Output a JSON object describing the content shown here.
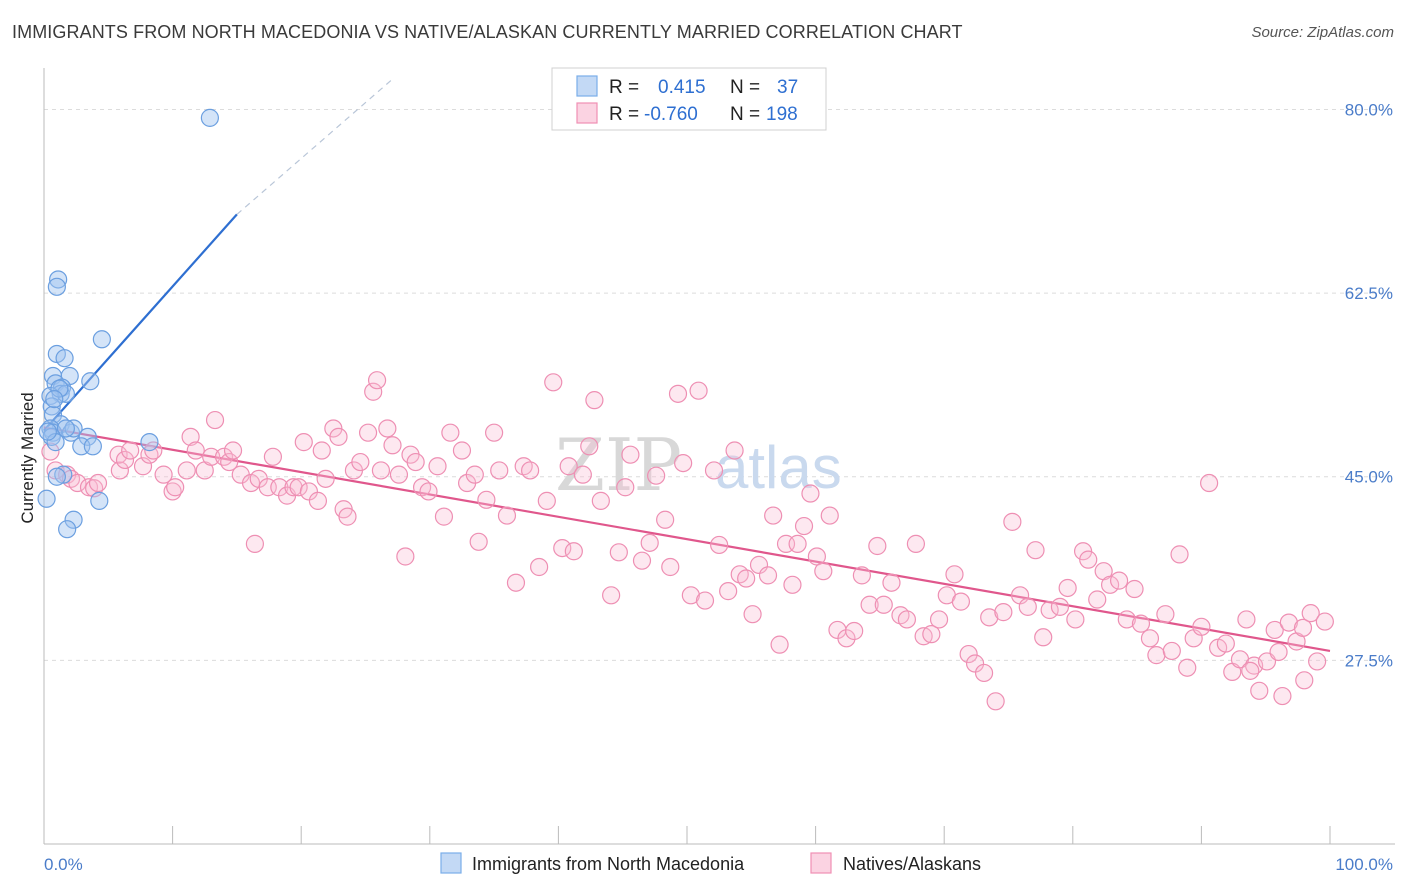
{
  "title": "IMMIGRANTS FROM NORTH MACEDONIA VS NATIVE/ALASKAN CURRENTLY MARRIED CORRELATION CHART",
  "source": "Source: ZipAtlas.com",
  "watermark": {
    "zip": "ZIP",
    "atlas": "atlas"
  },
  "colors": {
    "blue": "#7aaee8",
    "blue_line": "#2e6fd1",
    "pink": "#f08fb3",
    "pink_line": "#e0578c",
    "axis_label": "#4a7cc9"
  },
  "legend": {
    "rows": [
      {
        "r_label": "R =",
        "r_value": "0.415",
        "n_label": "N =",
        "n_value": "37"
      },
      {
        "r_label": "R =",
        "r_value": "-0.760",
        "n_label": "N =",
        "n_value": "198"
      }
    ]
  },
  "bottom_legend": [
    "Immigrants from North Macedonia",
    "Natives/Alaskans"
  ],
  "chart_data": {
    "type": "scatter",
    "ylabel": "Currently Married",
    "x_tick_labels": [
      "0.0%",
      "100.0%"
    ],
    "y_tick_labels": [
      "80.0%",
      "62.5%",
      "45.0%",
      "27.5%"
    ],
    "y_ticks": [
      80.0,
      62.5,
      45.0,
      27.5
    ],
    "xlim": [
      0,
      100
    ],
    "ylim": [
      10,
      83
    ],
    "grid": true,
    "series": [
      {
        "name": "Immigrants from North Macedonia",
        "points": [
          [
            12.9,
            79.2
          ],
          [
            1.1,
            63.8
          ],
          [
            1.0,
            63.1
          ],
          [
            4.5,
            58.1
          ],
          [
            1.0,
            56.7
          ],
          [
            1.6,
            56.3
          ],
          [
            3.6,
            54.1
          ],
          [
            2.0,
            54.6
          ],
          [
            0.7,
            54.6
          ],
          [
            0.9,
            53.9
          ],
          [
            1.4,
            53.5
          ],
          [
            1.3,
            52.9
          ],
          [
            1.7,
            52.9
          ],
          [
            0.5,
            52.7
          ],
          [
            1.2,
            53.4
          ],
          [
            0.6,
            51.7
          ],
          [
            0.7,
            50.9
          ],
          [
            1.3,
            50.0
          ],
          [
            0.5,
            49.6
          ],
          [
            0.7,
            49.2
          ],
          [
            2.1,
            49.2
          ],
          [
            2.3,
            49.6
          ],
          [
            1.7,
            49.6
          ],
          [
            0.6,
            48.8
          ],
          [
            3.4,
            48.8
          ],
          [
            0.9,
            48.3
          ],
          [
            2.9,
            47.9
          ],
          [
            3.8,
            47.9
          ],
          [
            8.2,
            48.3
          ],
          [
            1.5,
            45.2
          ],
          [
            1.0,
            45.0
          ],
          [
            4.3,
            42.7
          ],
          [
            0.2,
            42.9
          ],
          [
            2.3,
            40.9
          ],
          [
            1.8,
            40.0
          ],
          [
            0.3,
            49.3
          ],
          [
            0.8,
            52.4
          ]
        ]
      },
      {
        "name": "Natives/Alaskans",
        "points": [
          [
            0.5,
            47.4
          ],
          [
            0.9,
            45.6
          ],
          [
            1.8,
            45.2
          ],
          [
            2.1,
            44.8
          ],
          [
            2.6,
            44.4
          ],
          [
            3.5,
            44.0
          ],
          [
            3.9,
            43.9
          ],
          [
            4.2,
            44.4
          ],
          [
            5.9,
            45.6
          ],
          [
            5.8,
            47.1
          ],
          [
            6.3,
            46.6
          ],
          [
            6.7,
            47.5
          ],
          [
            7.7,
            46.0
          ],
          [
            8.2,
            47.1
          ],
          [
            8.5,
            47.5
          ],
          [
            9.3,
            45.2
          ],
          [
            10.0,
            43.6
          ],
          [
            10.2,
            44.0
          ],
          [
            11.1,
            45.6
          ],
          [
            11.4,
            48.8
          ],
          [
            11.8,
            47.5
          ],
          [
            12.5,
            45.6
          ],
          [
            13.0,
            46.9
          ],
          [
            13.3,
            50.4
          ],
          [
            14.0,
            46.9
          ],
          [
            14.4,
            46.4
          ],
          [
            14.7,
            47.5
          ],
          [
            15.3,
            45.2
          ],
          [
            16.1,
            44.4
          ],
          [
            16.4,
            38.6
          ],
          [
            16.7,
            44.8
          ],
          [
            17.4,
            44.0
          ],
          [
            17.8,
            46.9
          ],
          [
            18.3,
            44.0
          ],
          [
            18.9,
            43.2
          ],
          [
            19.4,
            44.0
          ],
          [
            19.8,
            44.0
          ],
          [
            20.2,
            48.3
          ],
          [
            20.6,
            43.6
          ],
          [
            21.3,
            42.7
          ],
          [
            21.6,
            47.5
          ],
          [
            21.9,
            44.8
          ],
          [
            22.5,
            49.6
          ],
          [
            22.9,
            48.8
          ],
          [
            23.3,
            41.9
          ],
          [
            23.6,
            41.2
          ],
          [
            24.1,
            45.6
          ],
          [
            24.6,
            46.4
          ],
          [
            25.2,
            49.2
          ],
          [
            25.6,
            53.1
          ],
          [
            25.9,
            54.2
          ],
          [
            26.2,
            45.6
          ],
          [
            26.7,
            49.6
          ],
          [
            27.1,
            48.0
          ],
          [
            27.6,
            45.2
          ],
          [
            28.1,
            37.4
          ],
          [
            28.5,
            47.1
          ],
          [
            28.9,
            46.4
          ],
          [
            29.4,
            44.0
          ],
          [
            29.9,
            43.6
          ],
          [
            30.6,
            46.0
          ],
          [
            31.1,
            41.2
          ],
          [
            31.6,
            49.2
          ],
          [
            32.5,
            47.5
          ],
          [
            32.9,
            44.4
          ],
          [
            33.5,
            45.2
          ],
          [
            33.8,
            38.8
          ],
          [
            34.4,
            42.8
          ],
          [
            35.0,
            49.2
          ],
          [
            35.4,
            45.6
          ],
          [
            36.0,
            41.3
          ],
          [
            36.7,
            34.9
          ],
          [
            37.3,
            46.0
          ],
          [
            37.8,
            45.6
          ],
          [
            38.5,
            36.4
          ],
          [
            39.1,
            42.7
          ],
          [
            39.6,
            54.0
          ],
          [
            40.3,
            38.2
          ],
          [
            40.8,
            46.0
          ],
          [
            41.2,
            37.9
          ],
          [
            41.9,
            45.2
          ],
          [
            42.4,
            47.9
          ],
          [
            42.8,
            52.3
          ],
          [
            43.3,
            42.7
          ],
          [
            44.1,
            33.7
          ],
          [
            44.7,
            37.8
          ],
          [
            45.2,
            44.0
          ],
          [
            45.6,
            47.1
          ],
          [
            46.5,
            37.0
          ],
          [
            47.1,
            38.7
          ],
          [
            47.6,
            45.1
          ],
          [
            48.3,
            40.9
          ],
          [
            48.7,
            36.4
          ],
          [
            49.3,
            52.9
          ],
          [
            49.7,
            46.3
          ],
          [
            50.3,
            33.7
          ],
          [
            50.9,
            53.2
          ],
          [
            51.4,
            33.2
          ],
          [
            52.1,
            45.6
          ],
          [
            52.5,
            38.5
          ],
          [
            53.2,
            34.1
          ],
          [
            53.7,
            47.5
          ],
          [
            54.1,
            35.7
          ],
          [
            54.6,
            35.3
          ],
          [
            55.1,
            31.9
          ],
          [
            55.6,
            36.6
          ],
          [
            56.3,
            35.6
          ],
          [
            56.7,
            41.3
          ],
          [
            57.2,
            29.0
          ],
          [
            57.7,
            38.6
          ],
          [
            58.2,
            34.7
          ],
          [
            58.6,
            38.6
          ],
          [
            59.1,
            40.3
          ],
          [
            59.6,
            43.4
          ],
          [
            60.1,
            37.4
          ],
          [
            60.6,
            36.0
          ],
          [
            61.1,
            41.3
          ],
          [
            61.7,
            30.4
          ],
          [
            62.4,
            29.6
          ],
          [
            63.0,
            30.3
          ],
          [
            63.6,
            35.6
          ],
          [
            64.2,
            32.8
          ],
          [
            64.8,
            38.4
          ],
          [
            65.3,
            32.8
          ],
          [
            65.9,
            34.9
          ],
          [
            66.6,
            31.8
          ],
          [
            67.1,
            31.4
          ],
          [
            67.8,
            38.6
          ],
          [
            68.4,
            29.8
          ],
          [
            69.0,
            30.0
          ],
          [
            69.6,
            31.4
          ],
          [
            70.2,
            33.7
          ],
          [
            70.8,
            35.7
          ],
          [
            71.3,
            33.1
          ],
          [
            71.9,
            28.1
          ],
          [
            72.4,
            27.2
          ],
          [
            73.1,
            26.3
          ],
          [
            73.5,
            31.6
          ],
          [
            74.0,
            23.6
          ],
          [
            74.6,
            32.1
          ],
          [
            75.3,
            40.7
          ],
          [
            75.9,
            33.7
          ],
          [
            76.5,
            32.6
          ],
          [
            77.1,
            38.0
          ],
          [
            77.7,
            29.7
          ],
          [
            78.2,
            32.3
          ],
          [
            79.0,
            32.6
          ],
          [
            79.6,
            34.4
          ],
          [
            80.2,
            31.4
          ],
          [
            80.8,
            37.9
          ],
          [
            81.2,
            37.1
          ],
          [
            81.9,
            33.3
          ],
          [
            82.4,
            36.0
          ],
          [
            82.9,
            34.7
          ],
          [
            83.6,
            35.1
          ],
          [
            84.2,
            31.4
          ],
          [
            84.8,
            34.3
          ],
          [
            85.3,
            31.0
          ],
          [
            86.0,
            29.6
          ],
          [
            86.5,
            28.0
          ],
          [
            87.2,
            31.9
          ],
          [
            87.7,
            28.4
          ],
          [
            88.3,
            37.6
          ],
          [
            88.9,
            26.8
          ],
          [
            89.4,
            29.6
          ],
          [
            90.0,
            30.7
          ],
          [
            90.6,
            44.4
          ],
          [
            91.3,
            28.7
          ],
          [
            91.9,
            29.1
          ],
          [
            92.4,
            26.4
          ],
          [
            93.0,
            27.6
          ],
          [
            93.5,
            31.4
          ],
          [
            94.1,
            27.0
          ],
          [
            94.5,
            24.6
          ],
          [
            95.1,
            27.4
          ],
          [
            95.7,
            30.4
          ],
          [
            96.3,
            24.1
          ],
          [
            96.8,
            31.1
          ],
          [
            97.4,
            29.3
          ],
          [
            97.9,
            30.6
          ],
          [
            98.5,
            32.0
          ],
          [
            99.0,
            27.4
          ],
          [
            99.6,
            31.2
          ],
          [
            98.0,
            25.6
          ],
          [
            96.0,
            28.3
          ],
          [
            93.8,
            26.5
          ]
        ]
      }
    ],
    "trendlines": [
      {
        "series": "Immigrants from North Macedonia",
        "from": [
          0,
          49.4
        ],
        "to": [
          15.0,
          70.0
        ],
        "dashed_to": [
          27.2,
          83.0
        ]
      },
      {
        "series": "Natives/Alaskans",
        "from": [
          0,
          49.7
        ],
        "to": [
          100,
          28.4
        ]
      }
    ]
  }
}
